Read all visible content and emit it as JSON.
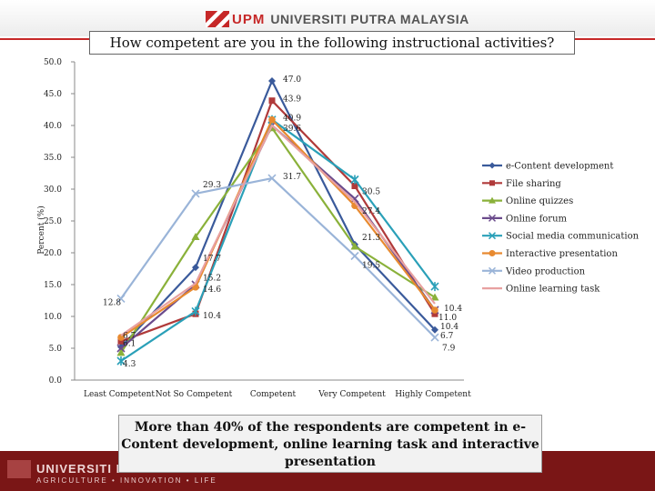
{
  "header": {
    "logo_text": "UPM",
    "university_name": "UNIVERSITI PUTRA MALAYSIA"
  },
  "footer": {
    "name": "UNIVERSITI PUTRA",
    "tagline": "AGRICULTURE • INNOVATION • LIFE"
  },
  "callout": {
    "text": "More than 40% of the respondents are competent in e-Content development, online learning task and interactive presentation"
  },
  "chart_data": {
    "type": "line",
    "title": "How competent are you in the following instructional activities?",
    "ylabel": "Percent (%)",
    "xlabel": "",
    "ylim": [
      0,
      50
    ],
    "y_ticks": [
      "0.0",
      "5.0",
      "10.0",
      "15.0",
      "20.0",
      "25.0",
      "30.0",
      "35.0",
      "40.0",
      "45.0",
      "50.0"
    ],
    "categories": [
      "Least Competent",
      "Not So Competent",
      "Competent",
      "Very Competent",
      "Highly Competent"
    ],
    "legend_position": "right",
    "series": [
      {
        "name": "e-Content development",
        "color": "#3a5a9b",
        "marker": "diamond",
        "values": [
          5.2,
          17.7,
          47.0,
          21.3,
          7.9
        ]
      },
      {
        "name": "File sharing",
        "color": "#b03a3a",
        "marker": "square",
        "values": [
          6.1,
          10.4,
          43.9,
          30.5,
          10.4
        ]
      },
      {
        "name": "Online quizzes",
        "color": "#8ab13a",
        "marker": "triangle",
        "values": [
          4.3,
          22.5,
          39.6,
          21.0,
          13.0
        ]
      },
      {
        "name": "Online forum",
        "color": "#6b4b8c",
        "marker": "x",
        "values": [
          5.0,
          15.0,
          40.0,
          28.5,
          11.0
        ]
      },
      {
        "name": "Social media communication",
        "color": "#2aa0b8",
        "marker": "star",
        "values": [
          3.0,
          10.8,
          40.9,
          31.5,
          14.7
        ]
      },
      {
        "name": "Interactive presentation",
        "color": "#e88a30",
        "marker": "circle",
        "values": [
          6.7,
          14.6,
          40.9,
          27.4,
          11.0
        ]
      },
      {
        "name": "Video production",
        "color": "#9ab4d8",
        "marker": "x",
        "values": [
          12.8,
          29.3,
          31.7,
          19.5,
          6.7
        ]
      },
      {
        "name": "Online learning task",
        "color": "#e8a0a0",
        "marker": "none",
        "values": [
          7.0,
          15.2,
          40.0,
          28.0,
          12.0
        ]
      }
    ],
    "data_labels": [
      {
        "text": "47.0",
        "category": 2,
        "value": 47.0
      },
      {
        "text": "43.9",
        "category": 2,
        "value": 43.9
      },
      {
        "text": "40.9",
        "category": 2,
        "value": 40.9
      },
      {
        "text": "39.6",
        "category": 2,
        "value": 39.6
      },
      {
        "text": "31.7",
        "category": 2,
        "value": 31.7
      },
      {
        "text": "29.3",
        "category": 1,
        "value": 29.3
      },
      {
        "text": "17.7",
        "category": 1,
        "value": 17.7
      },
      {
        "text": "15.2",
        "category": 1,
        "value": 15.2
      },
      {
        "text": "14.6",
        "category": 1,
        "value": 14.6
      },
      {
        "text": "10.4",
        "category": 1,
        "value": 10.4
      },
      {
        "text": "12.8",
        "category": 0,
        "value": 12.8
      },
      {
        "text": "6.7",
        "category": 0,
        "value": 6.7
      },
      {
        "text": "6.1",
        "category": 0,
        "value": 6.1
      },
      {
        "text": "4.3",
        "category": 0,
        "value": 4.3
      },
      {
        "text": "30.5",
        "category": 3,
        "value": 30.5
      },
      {
        "text": "27.4",
        "category": 3,
        "value": 27.4
      },
      {
        "text": "21.3",
        "category": 3,
        "value": 21.3
      },
      {
        "text": "19.5",
        "category": 3,
        "value": 19.5
      },
      {
        "text": "10.4",
        "category": 4,
        "value": 10.4
      },
      {
        "text": "11.0",
        "category": 4,
        "value": 11.0
      },
      {
        "text": "10.4",
        "category": 4,
        "value": 10.4
      },
      {
        "text": "7.9",
        "category": 4,
        "value": 7.9
      },
      {
        "text": "6.7",
        "category": 4,
        "value": 6.7
      }
    ]
  }
}
